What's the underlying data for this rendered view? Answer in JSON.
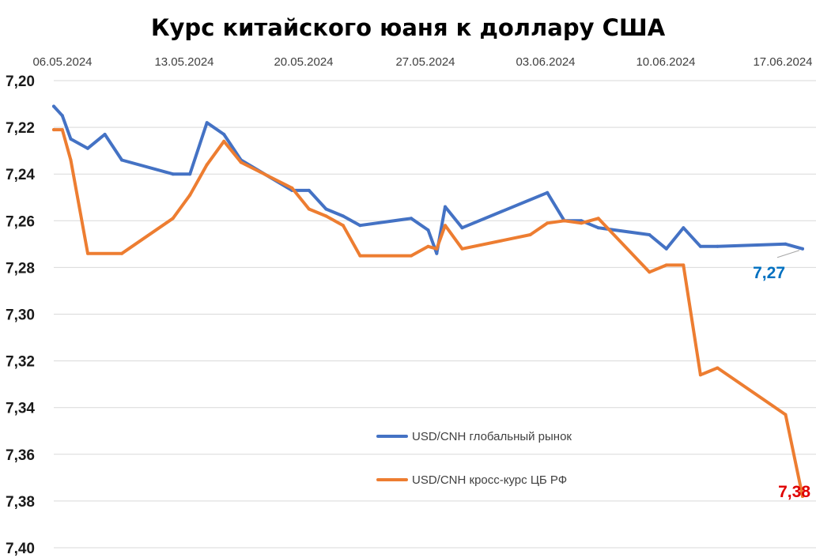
{
  "chart_data": {
    "type": "line",
    "title": "Курс китайского юаня к доллару США",
    "x_axis_position": "top",
    "x_tick_labels": [
      "06.05.2024",
      "13.05.2024",
      "20.05.2024",
      "27.05.2024",
      "03.06.2024",
      "10.06.2024",
      "17.06.2024"
    ],
    "y_tick_labels": [
      "7,20",
      "7,22",
      "7,24",
      "7,26",
      "7,28",
      "7,30",
      "7,32",
      "7,34",
      "7,36",
      "7,38",
      "7,40"
    ],
    "y_inverted": true,
    "ylim": [
      7.2,
      7.4
    ],
    "xlim": [
      "2024-05-06",
      "2024-06-19"
    ],
    "grid": true,
    "legend_position": "bottom-right",
    "series": [
      {
        "name": "USD/CNH глобальный рынок",
        "color": "#4472C4",
        "points": [
          [
            "2024-05-06",
            7.211
          ],
          [
            "2024-05-06T12:00",
            7.215
          ],
          [
            "2024-05-07",
            7.225
          ],
          [
            "2024-05-08",
            7.229
          ],
          [
            "2024-05-09",
            7.223
          ],
          [
            "2024-05-10",
            7.234
          ],
          [
            "2024-05-13",
            7.24
          ],
          [
            "2024-05-14",
            7.24
          ],
          [
            "2024-05-15",
            7.218
          ],
          [
            "2024-05-16",
            7.223
          ],
          [
            "2024-05-17",
            7.234
          ],
          [
            "2024-05-20",
            7.247
          ],
          [
            "2024-05-21",
            7.247
          ],
          [
            "2024-05-22",
            7.255
          ],
          [
            "2024-05-23",
            7.258
          ],
          [
            "2024-05-24",
            7.262
          ],
          [
            "2024-05-27",
            7.259
          ],
          [
            "2024-05-28",
            7.264
          ],
          [
            "2024-05-28T12:00",
            7.274
          ],
          [
            "2024-05-29",
            7.254
          ],
          [
            "2024-05-30",
            7.263
          ],
          [
            "2024-06-04",
            7.248
          ],
          [
            "2024-06-05",
            7.26
          ],
          [
            "2024-06-06",
            7.26
          ],
          [
            "2024-06-07",
            7.263
          ],
          [
            "2024-06-10",
            7.266
          ],
          [
            "2024-06-11",
            7.272
          ],
          [
            "2024-06-12",
            7.263
          ],
          [
            "2024-06-13",
            7.271
          ],
          [
            "2024-06-14",
            7.271
          ],
          [
            "2024-06-18",
            7.27
          ],
          [
            "2024-06-19",
            7.272
          ]
        ]
      },
      {
        "name": "USD/CNH кросс-курс ЦБ РФ",
        "color": "#ED7D31",
        "points": [
          [
            "2024-05-06",
            7.221
          ],
          [
            "2024-05-06T12:00",
            7.221
          ],
          [
            "2024-05-07",
            7.234
          ],
          [
            "2024-05-08",
            7.274
          ],
          [
            "2024-05-10",
            7.274
          ],
          [
            "2024-05-13",
            7.259
          ],
          [
            "2024-05-14",
            7.249
          ],
          [
            "2024-05-15",
            7.236
          ],
          [
            "2024-05-16",
            7.226
          ],
          [
            "2024-05-17",
            7.235
          ],
          [
            "2024-05-20",
            7.246
          ],
          [
            "2024-05-21",
            7.255
          ],
          [
            "2024-05-22",
            7.258
          ],
          [
            "2024-05-23",
            7.262
          ],
          [
            "2024-05-24",
            7.275
          ],
          [
            "2024-05-27",
            7.275
          ],
          [
            "2024-05-28",
            7.271
          ],
          [
            "2024-05-28T12:00",
            7.272
          ],
          [
            "2024-05-29",
            7.262
          ],
          [
            "2024-05-30",
            7.272
          ],
          [
            "2024-06-03",
            7.266
          ],
          [
            "2024-06-04",
            7.261
          ],
          [
            "2024-06-05",
            7.26
          ],
          [
            "2024-06-06",
            7.261
          ],
          [
            "2024-06-07",
            7.259
          ],
          [
            "2024-06-10",
            7.282
          ],
          [
            "2024-06-11",
            7.279
          ],
          [
            "2024-06-12",
            7.279
          ],
          [
            "2024-06-13",
            7.326
          ],
          [
            "2024-06-14",
            7.323
          ],
          [
            "2024-06-18",
            7.343
          ],
          [
            "2024-06-19",
            7.378
          ]
        ]
      }
    ],
    "annotations": [
      {
        "text": "7,27",
        "series": 0,
        "color": "#0070C0"
      },
      {
        "text": "7,38",
        "series": 1,
        "color": "#E00000"
      }
    ]
  }
}
